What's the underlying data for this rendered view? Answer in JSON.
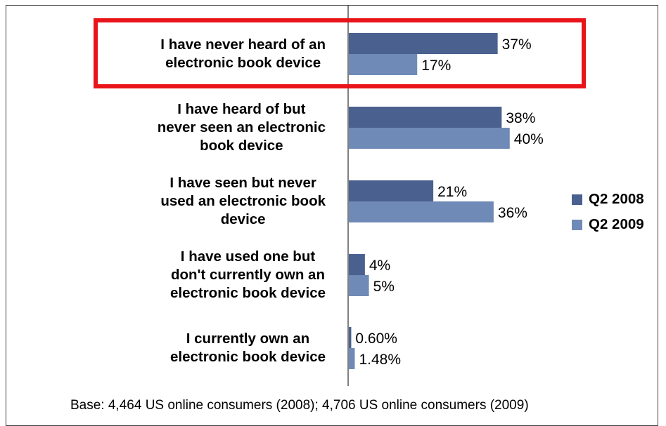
{
  "chart_data": {
    "type": "bar",
    "orientation": "horizontal",
    "categories": [
      "I have never heard of an\nelectronic book device",
      "I have heard of but\nnever seen an electronic\nbook device",
      "I have seen but never\nused an electronic book\ndevice",
      "I have used one but\ndon't currently own an\nelectronic book device",
      "I currently own an\nelectronic book device"
    ],
    "series": [
      {
        "name": "Q2 2008",
        "values": [
          37,
          38,
          21,
          4,
          0.6
        ],
        "labels": [
          "37%",
          "38%",
          "21%",
          "4%",
          "0.60%"
        ],
        "color": "#4a6190"
      },
      {
        "name": "Q2 2009",
        "values": [
          17,
          40,
          36,
          5,
          1.48
        ],
        "labels": [
          "17%",
          "40%",
          "36%",
          "5%",
          "1.48%"
        ],
        "color": "#6f8ab6"
      }
    ],
    "xlim": [
      0,
      100
    ],
    "legend_position": "right",
    "highlight": {
      "category_index": 0,
      "color": "#e8141a"
    }
  },
  "footnote": "Base: 4,464 US online consumers (2008); 4,706 US online consumers (2009)"
}
